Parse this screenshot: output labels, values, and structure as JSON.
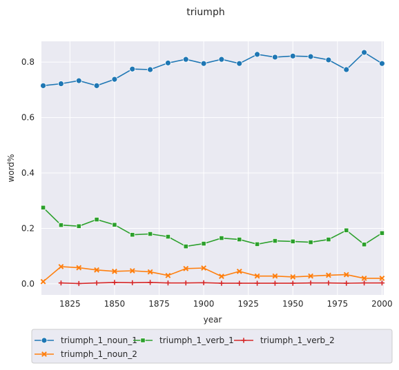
{
  "chart_data": {
    "type": "line",
    "title": "triumph",
    "xlabel": "year",
    "ylabel": "word%",
    "xlim": [
      1809,
      2001
    ],
    "ylim": [
      -0.04,
      0.875
    ],
    "xticks": [
      1825,
      1850,
      1875,
      1900,
      1925,
      1950,
      1975,
      2000
    ],
    "yticks": [
      0.0,
      0.2,
      0.4,
      0.6,
      0.8
    ],
    "grid": true,
    "legend_position": "bottom",
    "series": [
      {
        "name": "triumph_1_noun_1",
        "color": "#1f77b4",
        "marker": "circle",
        "x": [
          1810,
          1820,
          1830,
          1840,
          1850,
          1860,
          1870,
          1880,
          1890,
          1900,
          1910,
          1920,
          1930,
          1940,
          1950,
          1960,
          1970,
          1980,
          1990,
          2000
        ],
        "y": [
          0.715,
          0.722,
          0.733,
          0.715,
          0.738,
          0.775,
          0.773,
          0.797,
          0.81,
          0.795,
          0.81,
          0.795,
          0.828,
          0.818,
          0.822,
          0.82,
          0.808,
          0.773,
          0.835,
          0.795
        ]
      },
      {
        "name": "triumph_1_noun_2",
        "color": "#ff7f0e",
        "marker": "x",
        "x": [
          1810,
          1820,
          1830,
          1840,
          1850,
          1860,
          1870,
          1880,
          1890,
          1900,
          1910,
          1920,
          1930,
          1940,
          1950,
          1960,
          1970,
          1980,
          1990,
          2000
        ],
        "y": [
          0.008,
          0.062,
          0.058,
          0.05,
          0.045,
          0.047,
          0.043,
          0.03,
          0.055,
          0.057,
          0.027,
          0.045,
          0.028,
          0.028,
          0.025,
          0.028,
          0.031,
          0.033,
          0.02,
          0.02
        ]
      },
      {
        "name": "triumph_1_verb_1",
        "color": "#2ca02c",
        "marker": "square",
        "x": [
          1810,
          1820,
          1830,
          1840,
          1850,
          1860,
          1870,
          1880,
          1890,
          1900,
          1910,
          1920,
          1930,
          1940,
          1950,
          1960,
          1970,
          1980,
          1990,
          2000
        ],
        "y": [
          0.275,
          0.212,
          0.208,
          0.232,
          0.213,
          0.177,
          0.18,
          0.17,
          0.135,
          0.145,
          0.165,
          0.16,
          0.143,
          0.155,
          0.153,
          0.15,
          0.16,
          0.193,
          0.142,
          0.183
        ]
      },
      {
        "name": "triumph_1_verb_2",
        "color": "#d62728",
        "marker": "plus",
        "x": [
          1820,
          1830,
          1840,
          1850,
          1860,
          1870,
          1880,
          1890,
          1900,
          1910,
          1920,
          1930,
          1940,
          1950,
          1960,
          1970,
          1980,
          1990,
          2000
        ],
        "y": [
          0.003,
          0.001,
          0.003,
          0.005,
          0.004,
          0.005,
          0.003,
          0.003,
          0.004,
          0.002,
          0.002,
          0.002,
          0.002,
          0.002,
          0.003,
          0.003,
          0.002,
          0.003,
          0.003
        ]
      }
    ]
  }
}
